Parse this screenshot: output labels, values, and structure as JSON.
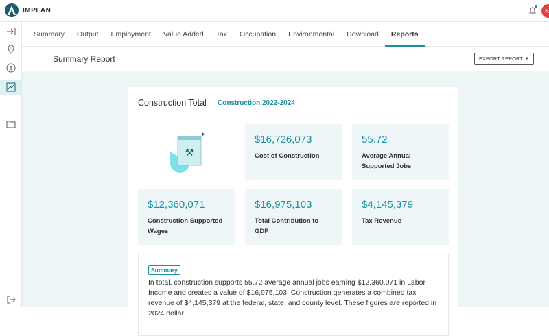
{
  "app": {
    "brand": "IMPLAN",
    "avatar": "K"
  },
  "tabs": [
    "Summary",
    "Output",
    "Employment",
    "Value Added",
    "Tax",
    "Occupation",
    "Environmental",
    "Download",
    "Reports"
  ],
  "active_tab": 8,
  "header": {
    "title": "Summary Report",
    "button": "EXPORT REPORT"
  },
  "card": {
    "title": "Construction Total",
    "subtitle": "Construction 2022-2024",
    "stats": [
      {
        "value": "$16,726,073",
        "label": "Cost of Construction"
      },
      {
        "value": "55.72",
        "label": "Average Annual Supported Jobs"
      },
      {
        "value": "$12,360,071",
        "label": "Construction Supported Wages"
      },
      {
        "value": "$16,975,103",
        "label": "Total Contribution to GDP"
      },
      {
        "value": "$4,145,379",
        "label": "Tax Revenue"
      }
    ],
    "summary": {
      "badge": "Summary",
      "text": "In total, construction supports 55.72 average annual jobs earning $12,360,071 in Labor Income and creates a value of $16,975,103. Construction generates a combined tax revenue of $4,145,379 at the federal, state, and county level. These figures are reported in 2024 dollar"
    }
  }
}
